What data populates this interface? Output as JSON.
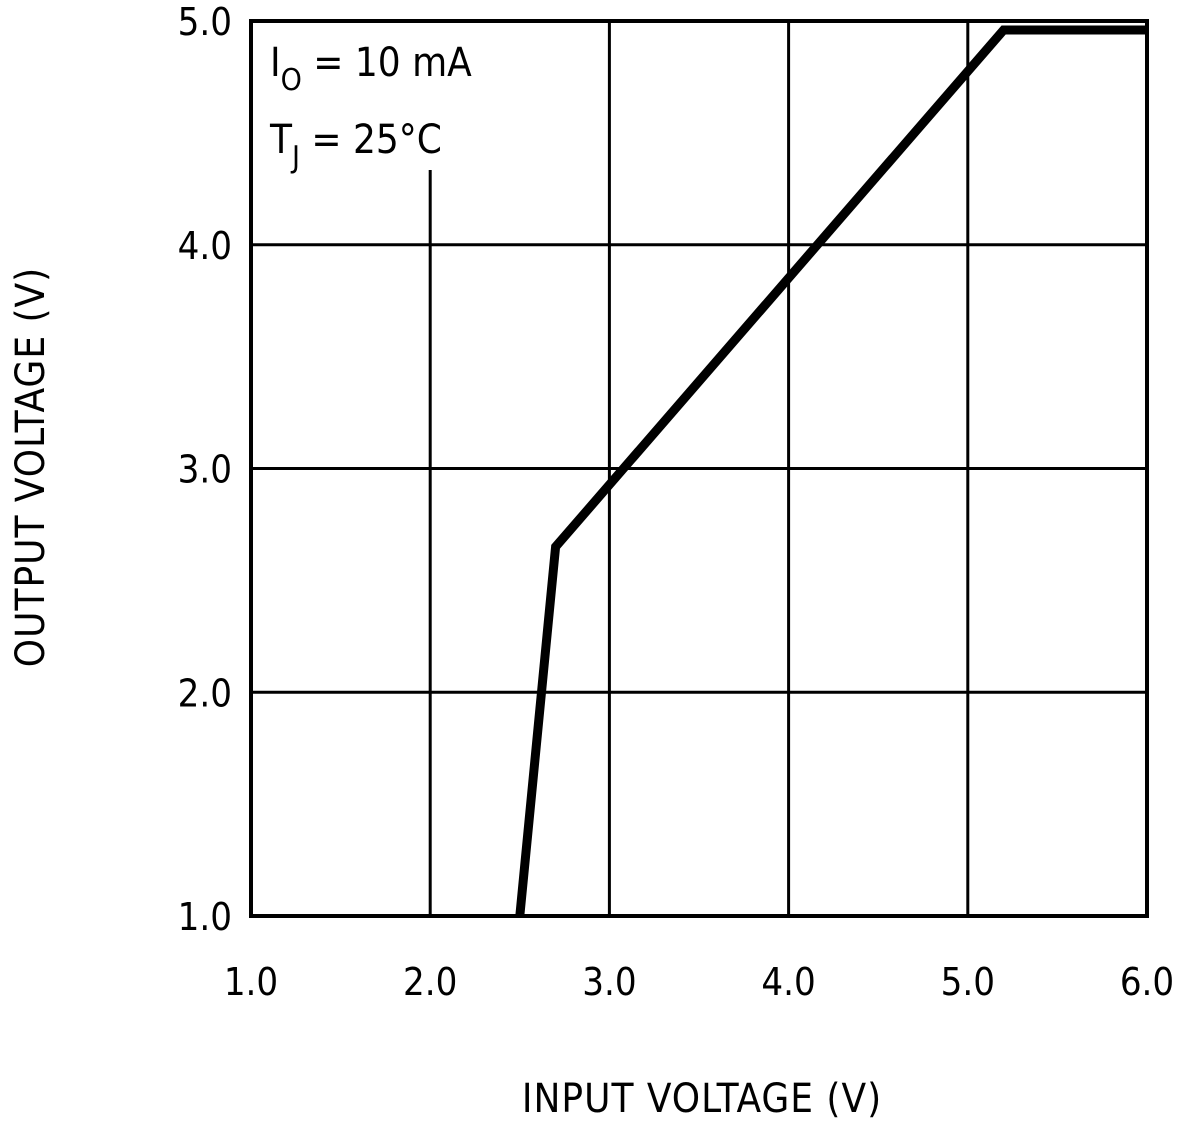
{
  "chart_data": {
    "type": "line",
    "title": "",
    "xlabel": "INPUT VOLTAGE (V)",
    "ylabel": "OUTPUT VOLTAGE (V)",
    "xlim": [
      1.0,
      6.0
    ],
    "ylim": [
      1.0,
      5.0
    ],
    "x_ticks": [
      "1.0",
      "2.0",
      "3.0",
      "4.0",
      "5.0",
      "6.0"
    ],
    "y_ticks": [
      "1.0",
      "2.0",
      "3.0",
      "4.0",
      "5.0"
    ],
    "grid": true,
    "series": [
      {
        "x": [
          2.5,
          2.7,
          5.2,
          6.0
        ],
        "y": [
          1.0,
          2.65,
          4.96,
          4.96
        ]
      }
    ],
    "annotations": [
      {
        "main": "I",
        "sub": "O",
        "rest": " = 10 mA"
      },
      {
        "main": "T",
        "sub": "J",
        "rest": " = 25°C"
      }
    ],
    "line_color": "#000000"
  }
}
